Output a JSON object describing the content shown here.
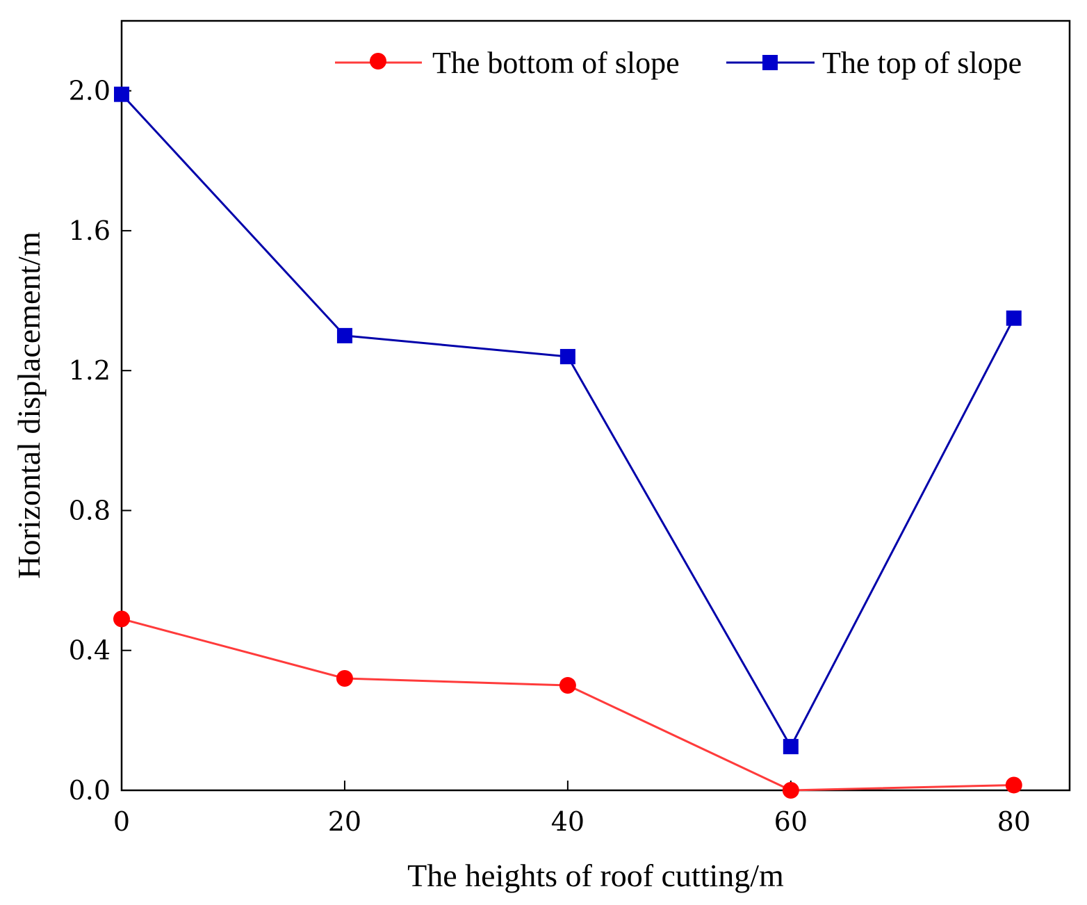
{
  "chart_data": {
    "type": "line",
    "title": "",
    "xlabel": "The heights of roof cutting/m",
    "ylabel": "Horizontal displacement/m",
    "x": [
      0,
      20,
      40,
      60,
      80
    ],
    "xlim": [
      0,
      85
    ],
    "ylim": [
      0,
      2.2
    ],
    "xticks": [
      0,
      20,
      40,
      60,
      80
    ],
    "xtick_labels": [
      "0",
      "20",
      "40",
      "60",
      "80"
    ],
    "yticks": [
      0,
      0.4,
      0.8,
      1.2,
      1.6,
      2.0
    ],
    "ytick_labels": [
      "0.0",
      "0.4",
      "0.8",
      "1.2",
      "1.6",
      "2.0"
    ],
    "grid": false,
    "legend_position": "top-right",
    "series": [
      {
        "name": "The bottom of slope",
        "values": [
          0.49,
          0.32,
          0.3,
          0.0,
          0.015
        ],
        "color": "#ff3b3b",
        "marker_color": "#ff0000",
        "marker": "circle"
      },
      {
        "name": "The top of slope",
        "values": [
          1.99,
          1.3,
          1.24,
          0.125,
          1.35
        ],
        "color": "#0000aa",
        "marker_color": "#0000cc",
        "marker": "square"
      }
    ]
  }
}
